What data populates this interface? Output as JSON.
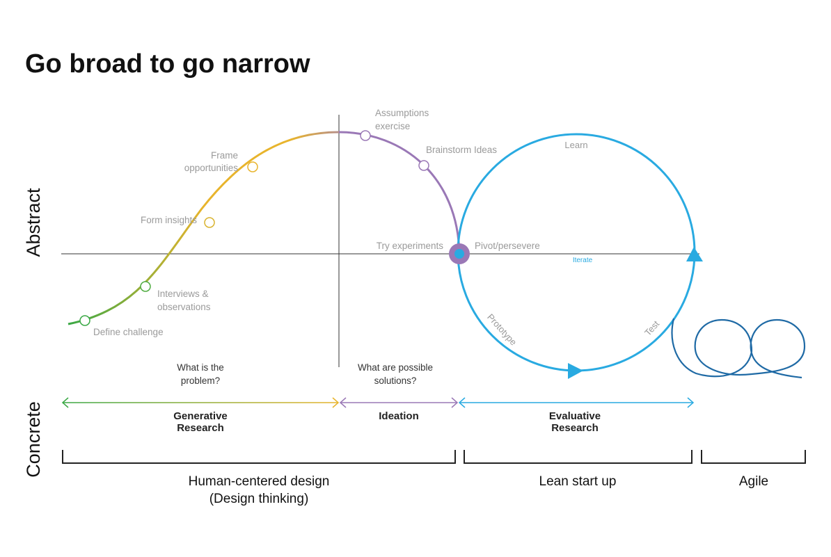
{
  "title": "Go broad to go narrow",
  "axes": {
    "abstract": "Abstract",
    "concrete": "Concrete"
  },
  "stages": {
    "define": "Define challenge",
    "interviews_1": "Interviews &",
    "interviews_2": "observations",
    "insights": "Form insights",
    "frame_1": "Frame",
    "frame_2": "opportunities",
    "assumptions_1": "Assumptions",
    "assumptions_2": "exercise",
    "brainstorm": "Brainstorm Ideas",
    "experiments": "Try experiments",
    "pivot": "Pivot/persevere"
  },
  "loop": {
    "learn": "Learn",
    "prototype": "Prototype",
    "test": "Test",
    "iterate": "Iterate"
  },
  "questions": {
    "problem_1": "What is the",
    "problem_2": "problem?",
    "solutions_1": "What are possible",
    "solutions_2": "solutions?"
  },
  "phases": {
    "generative_1": "Generative",
    "generative_2": "Research",
    "ideation": "Ideation",
    "evaluative_1": "Evaluative",
    "evaluative_2": "Research"
  },
  "methods": {
    "hcd_1": "Human-centered design",
    "hcd_2": "(Design thinking)",
    "lean": "Lean start up",
    "agile": "Agile"
  },
  "colors": {
    "green": "#3aa845",
    "yellow": "#e8b42c",
    "purple": "#9a78b6",
    "blue": "#29aae1",
    "dark_blue": "#1f6aa5",
    "grey_text": "#9a9a9a"
  }
}
